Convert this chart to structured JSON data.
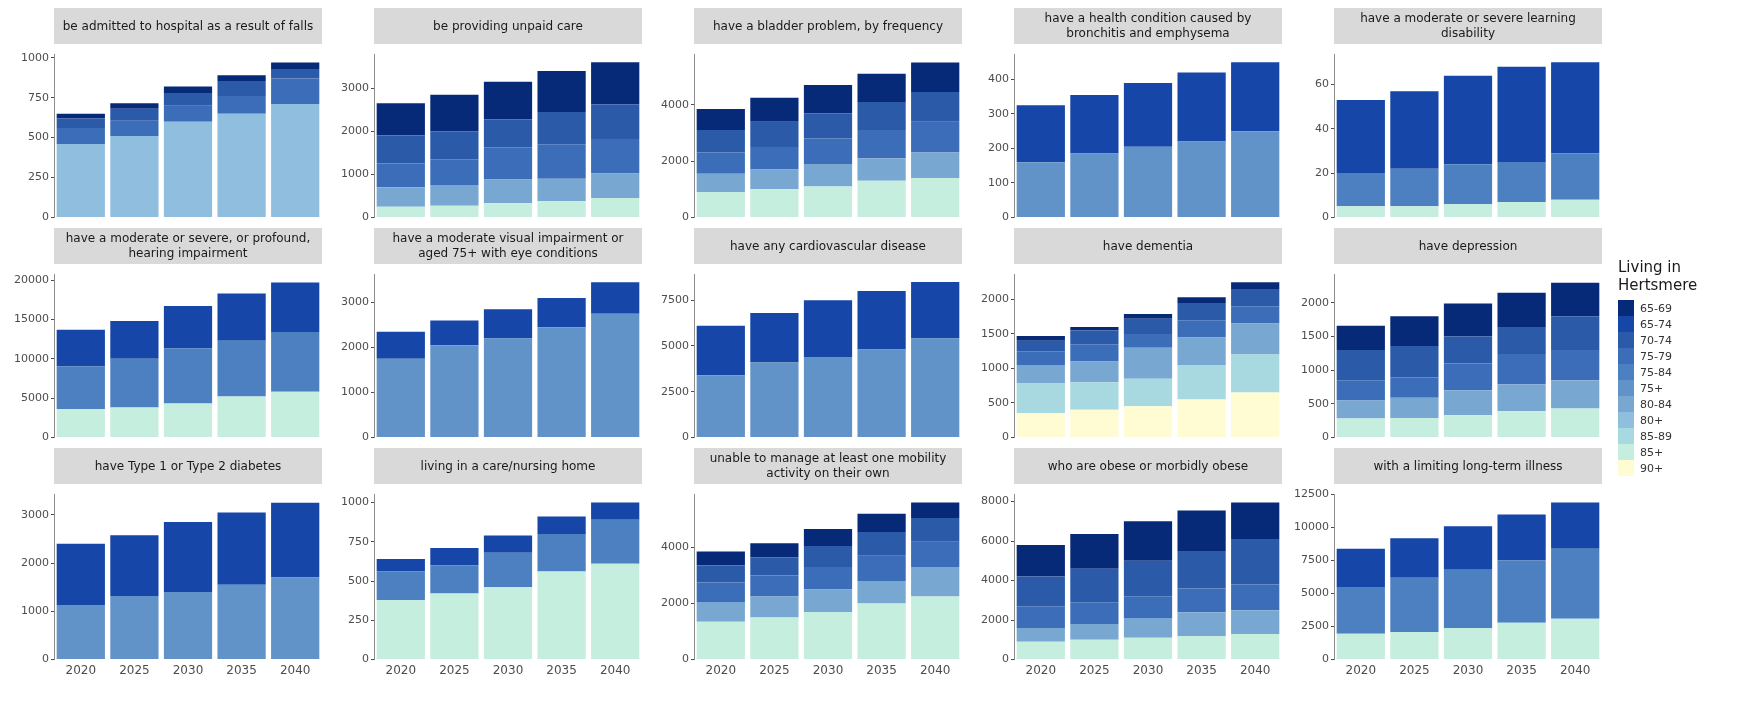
{
  "chart_data": [
    {
      "type": "bar",
      "stacked": true,
      "title": "be admitted to hospital as a result of falls",
      "categories": [
        "2020",
        "2025",
        "2030",
        "2035",
        "2040"
      ],
      "series": [
        {
          "name": "80+",
          "color": "#90bede",
          "values": [
            460,
            510,
            600,
            650,
            710
          ]
        },
        {
          "name": "75-79",
          "color": "#3b6db8",
          "values": [
            100,
            95,
            100,
            110,
            160
          ]
        },
        {
          "name": "70-74",
          "color": "#2a5aa8",
          "values": [
            60,
            75,
            80,
            95,
            60
          ]
        },
        {
          "name": "65-69",
          "color": "#062a78",
          "values": [
            30,
            35,
            40,
            35,
            40
          ]
        }
      ],
      "ylim": [
        0,
        1020
      ],
      "yticks": [
        0,
        250,
        500,
        750,
        1000
      ],
      "grid": false,
      "tick_labels": "y",
      "legend": "right"
    },
    {
      "type": "bar",
      "stacked": true,
      "title": "be providing unpaid care",
      "categories": [
        "2020",
        "2025",
        "2030",
        "2035",
        "2040"
      ],
      "series": [
        {
          "name": "85+",
          "color": "#c6eedf",
          "values": [
            250,
            270,
            330,
            380,
            450
          ]
        },
        {
          "name": "80-84",
          "color": "#78a8d2",
          "values": [
            450,
            480,
            550,
            520,
            570
          ]
        },
        {
          "name": "75-79",
          "color": "#3b6db8",
          "values": [
            550,
            600,
            750,
            800,
            800
          ]
        },
        {
          "name": "70-74",
          "color": "#2a5aa8",
          "values": [
            650,
            650,
            650,
            750,
            800
          ]
        },
        {
          "name": "65-69",
          "color": "#062a78",
          "values": [
            750,
            850,
            870,
            950,
            980
          ]
        }
      ],
      "ylim": [
        0,
        3780
      ],
      "yticks": [
        0,
        1000,
        2000,
        3000
      ],
      "grid": false,
      "tick_labels": "y",
      "legend": "right"
    },
    {
      "type": "bar",
      "stacked": true,
      "title": "have a bladder problem, by frequency",
      "categories": [
        "2020",
        "2025",
        "2030",
        "2035",
        "2040"
      ],
      "series": [
        {
          "name": "85+",
          "color": "#c6eedf",
          "values": [
            900,
            1000,
            1100,
            1300,
            1400
          ]
        },
        {
          "name": "80-84",
          "color": "#78a8d2",
          "values": [
            650,
            700,
            800,
            800,
            900
          ]
        },
        {
          "name": "75-79",
          "color": "#3b6db8",
          "values": [
            750,
            800,
            900,
            1000,
            1100
          ]
        },
        {
          "name": "70-74",
          "color": "#2a5aa8",
          "values": [
            800,
            900,
            900,
            1000,
            1050
          ]
        },
        {
          "name": "65-69",
          "color": "#062a78",
          "values": [
            750,
            850,
            1000,
            1000,
            1050
          ]
        }
      ],
      "ylim": [
        0,
        5780
      ],
      "yticks": [
        0,
        2000,
        4000
      ],
      "grid": false,
      "tick_labels": "y",
      "legend": "right"
    },
    {
      "type": "bar",
      "stacked": true,
      "title": "have a health condition caused by bronchitis and emphysema",
      "categories": [
        "2020",
        "2025",
        "2030",
        "2035",
        "2040"
      ],
      "series": [
        {
          "name": "75+",
          "color": "#6293c8",
          "values": [
            160,
            185,
            205,
            220,
            250
          ]
        },
        {
          "name": "65-74",
          "color": "#1546a8",
          "values": [
            165,
            170,
            185,
            200,
            200
          ]
        }
      ],
      "ylim": [
        0,
        472
      ],
      "yticks": [
        0,
        100,
        200,
        300,
        400
      ],
      "grid": false,
      "tick_labels": "y",
      "legend": "right"
    },
    {
      "type": "bar",
      "stacked": true,
      "title": "have a moderate or severe learning disability",
      "categories": [
        "2020",
        "2025",
        "2030",
        "2035",
        "2040"
      ],
      "series": [
        {
          "name": "85+",
          "color": "#c6eedf",
          "values": [
            5,
            5,
            6,
            7,
            8
          ]
        },
        {
          "name": "75-84",
          "color": "#4d80c0",
          "values": [
            15,
            17,
            18,
            18,
            21
          ]
        },
        {
          "name": "65-74",
          "color": "#1546a8",
          "values": [
            33,
            35,
            40,
            43,
            41
          ]
        }
      ],
      "ylim": [
        0,
        73.5
      ],
      "yticks": [
        0,
        20,
        40,
        60
      ],
      "grid": false,
      "tick_labels": "y",
      "legend": "right"
    },
    {
      "type": "bar",
      "stacked": true,
      "title": "have a moderate or severe, or profound, hearing impairment",
      "categories": [
        "2020",
        "2025",
        "2030",
        "2035",
        "2040"
      ],
      "series": [
        {
          "name": "85+",
          "color": "#c6eedf",
          "values": [
            3600,
            3800,
            4300,
            5200,
            5800
          ]
        },
        {
          "name": "75-84",
          "color": "#4d80c0",
          "values": [
            5400,
            6200,
            7000,
            7100,
            7600
          ]
        },
        {
          "name": "65-74",
          "color": "#1546a8",
          "values": [
            4700,
            4800,
            5400,
            6000,
            6300
          ]
        }
      ],
      "ylim": [
        0,
        20700
      ],
      "yticks": [
        0,
        5000,
        10000,
        15000,
        20000
      ],
      "grid": false,
      "tick_labels": "y",
      "legend": "right"
    },
    {
      "type": "bar",
      "stacked": true,
      "title": "have a moderate visual impairment or aged 75+ with eye conditions",
      "categories": [
        "2020",
        "2025",
        "2030",
        "2035",
        "2040"
      ],
      "series": [
        {
          "name": "75+",
          "color": "#6293c8",
          "values": [
            1750,
            2050,
            2200,
            2450,
            2750
          ]
        },
        {
          "name": "65-74",
          "color": "#1546a8",
          "values": [
            600,
            550,
            650,
            650,
            700
          ]
        }
      ],
      "ylim": [
        0,
        3620
      ],
      "yticks": [
        0,
        1000,
        2000,
        3000
      ],
      "grid": false,
      "tick_labels": "y",
      "legend": "right"
    },
    {
      "type": "bar",
      "stacked": true,
      "title": "have any cardiovascular disease",
      "categories": [
        "2020",
        "2025",
        "2030",
        "2035",
        "2040"
      ],
      "series": [
        {
          "name": "75+",
          "color": "#6293c8",
          "values": [
            3400,
            4100,
            4400,
            4800,
            5400
          ]
        },
        {
          "name": "65-74",
          "color": "#1546a8",
          "values": [
            2700,
            2700,
            3100,
            3200,
            3100
          ]
        }
      ],
      "ylim": [
        0,
        8900
      ],
      "yticks": [
        0,
        2500,
        5000,
        7500
      ],
      "grid": false,
      "tick_labels": "y",
      "legend": "right"
    },
    {
      "type": "bar",
      "stacked": true,
      "title": "have dementia",
      "categories": [
        "2020",
        "2025",
        "2030",
        "2035",
        "2040"
      ],
      "series": [
        {
          "name": "90+",
          "color": "#fffbd2",
          "values": [
            350,
            400,
            450,
            550,
            650
          ]
        },
        {
          "name": "85-89",
          "color": "#a8d8e0",
          "values": [
            430,
            400,
            400,
            500,
            550
          ]
        },
        {
          "name": "80-84",
          "color": "#78a8d2",
          "values": [
            270,
            300,
            450,
            400,
            450
          ]
        },
        {
          "name": "75-79",
          "color": "#3b6db8",
          "values": [
            200,
            250,
            200,
            250,
            250
          ]
        },
        {
          "name": "70-74",
          "color": "#2a5aa8",
          "values": [
            150,
            200,
            220,
            250,
            250
          ]
        },
        {
          "name": "65-69",
          "color": "#062a78",
          "values": [
            70,
            50,
            70,
            80,
            100
          ]
        }
      ],
      "ylim": [
        0,
        2360
      ],
      "yticks": [
        0,
        500,
        1000,
        1500,
        2000
      ],
      "grid": false,
      "tick_labels": "y",
      "legend": "right"
    },
    {
      "type": "bar",
      "stacked": true,
      "title": "have depression",
      "categories": [
        "2020",
        "2025",
        "2030",
        "2035",
        "2040"
      ],
      "series": [
        {
          "name": "85+",
          "color": "#c6eedf",
          "values": [
            280,
            290,
            330,
            390,
            430
          ]
        },
        {
          "name": "80-84",
          "color": "#78a8d2",
          "values": [
            270,
            300,
            370,
            400,
            420
          ]
        },
        {
          "name": "75-79",
          "color": "#3b6db8",
          "values": [
            300,
            300,
            400,
            450,
            450
          ]
        },
        {
          "name": "70-74",
          "color": "#2a5aa8",
          "values": [
            450,
            470,
            400,
            400,
            500
          ]
        },
        {
          "name": "65-69",
          "color": "#062a78",
          "values": [
            360,
            440,
            490,
            510,
            500
          ]
        }
      ],
      "ylim": [
        0,
        2420
      ],
      "yticks": [
        0,
        500,
        1000,
        1500,
        2000
      ],
      "grid": false,
      "tick_labels": "y",
      "legend": "right",
      "legend_title": "Living in Hertsmere"
    },
    {
      "type": "bar",
      "stacked": true,
      "title": "have Type 1 or Type 2 diabetes",
      "categories": [
        "2020",
        "2025",
        "2030",
        "2035",
        "2040"
      ],
      "series": [
        {
          "name": "75+",
          "color": "#6293c8",
          "values": [
            1130,
            1320,
            1400,
            1550,
            1700
          ]
        },
        {
          "name": "65-74",
          "color": "#1546a8",
          "values": [
            1270,
            1260,
            1450,
            1500,
            1550
          ]
        }
      ],
      "ylim": [
        0,
        3420
      ],
      "yticks": [
        0,
        1000,
        2000,
        3000
      ],
      "grid": false,
      "legend": "right"
    },
    {
      "type": "bar",
      "stacked": true,
      "title": "living in a care/nursing home",
      "categories": [
        "2020",
        "2025",
        "2030",
        "2035",
        "2040"
      ],
      "series": [
        {
          "name": "85+",
          "color": "#c6eedf",
          "values": [
            380,
            420,
            460,
            560,
            610
          ]
        },
        {
          "name": "75-84",
          "color": "#4d80c0",
          "values": [
            180,
            180,
            220,
            240,
            280
          ]
        },
        {
          "name": "65-74",
          "color": "#1546a8",
          "values": [
            80,
            110,
            110,
            110,
            110
          ]
        }
      ],
      "ylim": [
        0,
        1050
      ],
      "yticks": [
        0,
        250,
        500,
        750,
        1000
      ],
      "grid": false,
      "legend": "right"
    },
    {
      "type": "bar",
      "stacked": true,
      "title": "unable to manage at least one mobility activity on their own",
      "categories": [
        "2020",
        "2025",
        "2030",
        "2035",
        "2040"
      ],
      "series": [
        {
          "name": "85+",
          "color": "#c6eedf",
          "values": [
            1350,
            1500,
            1700,
            2000,
            2250
          ]
        },
        {
          "name": "80-84",
          "color": "#78a8d2",
          "values": [
            700,
            750,
            800,
            800,
            1050
          ]
        },
        {
          "name": "75-79",
          "color": "#3b6db8",
          "values": [
            700,
            750,
            800,
            900,
            900
          ]
        },
        {
          "name": "70-74",
          "color": "#2a5aa8",
          "values": [
            600,
            650,
            750,
            850,
            850
          ]
        },
        {
          "name": "65-69",
          "color": "#062a78",
          "values": [
            500,
            500,
            600,
            650,
            550
          ]
        }
      ],
      "ylim": [
        0,
        5880
      ],
      "yticks": [
        0,
        2000,
        4000
      ],
      "grid": false,
      "legend": "right"
    },
    {
      "type": "bar",
      "stacked": true,
      "title": "who are obese or morbidly obese",
      "categories": [
        "2020",
        "2025",
        "2030",
        "2035",
        "2040"
      ],
      "series": [
        {
          "name": "85+",
          "color": "#c6eedf",
          "values": [
            900,
            1000,
            1100,
            1200,
            1300
          ]
        },
        {
          "name": "80-84",
          "color": "#78a8d2",
          "values": [
            700,
            800,
            1000,
            1200,
            1200
          ]
        },
        {
          "name": "75-79",
          "color": "#3b6db8",
          "values": [
            1100,
            1100,
            1100,
            1200,
            1300
          ]
        },
        {
          "name": "70-74",
          "color": "#2a5aa8",
          "values": [
            1500,
            1700,
            1800,
            1900,
            2300
          ]
        },
        {
          "name": "65-69",
          "color": "#062a78",
          "values": [
            1600,
            1750,
            2000,
            2050,
            1850
          ]
        }
      ],
      "ylim": [
        0,
        8350
      ],
      "yticks": [
        0,
        2000,
        4000,
        6000,
        8000
      ],
      "grid": false,
      "legend": "right"
    },
    {
      "type": "bar",
      "stacked": true,
      "title": "with a limiting long-term illness",
      "categories": [
        "2020",
        "2025",
        "2030",
        "2035",
        "2040"
      ],
      "series": [
        {
          "name": "85+",
          "color": "#c6eedf",
          "values": [
            1950,
            2100,
            2400,
            2800,
            3100
          ]
        },
        {
          "name": "75-84",
          "color": "#4d80c0",
          "values": [
            3550,
            4100,
            4400,
            4700,
            5300
          ]
        },
        {
          "name": "65-74",
          "color": "#1546a8",
          "values": [
            2900,
            3000,
            3300,
            3500,
            3500
          ]
        }
      ],
      "ylim": [
        0,
        12500
      ],
      "yticks": [
        0,
        2500,
        5000,
        7500,
        10000,
        12500
      ],
      "grid": false,
      "legend": "right"
    }
  ]
}
